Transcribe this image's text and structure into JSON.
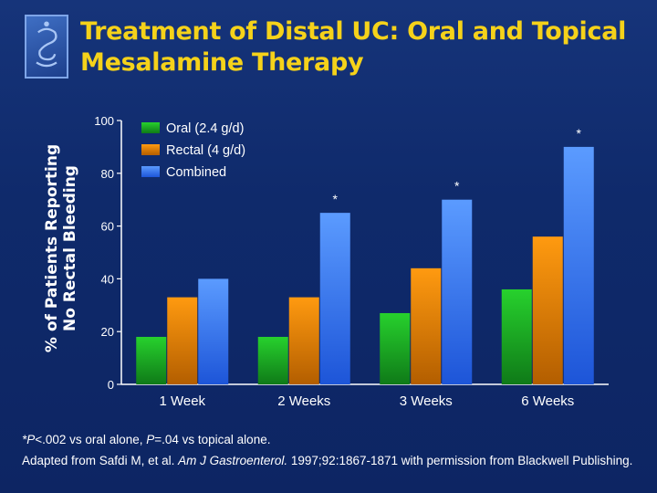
{
  "slide": {
    "title_line1": "Treatment of Distal UC: Oral and Topical",
    "title_line2": "Mesalamine Therapy"
  },
  "footnote": {
    "line1_a": "*P",
    "line1_b": "<.002 vs oral alone, ",
    "line1_c": "P",
    "line1_d": "=.04 vs topical alone.",
    "line2_a": "Adapted from Safdi M, et al. ",
    "line2_b": "Am J Gastroenterol.",
    "line2_c": " 1997;92:1867-1871 with permission from Blackwell Publishing."
  },
  "chart_data": {
    "type": "bar",
    "ylabel_line1": "% of Patients Reporting",
    "ylabel_line2": "No Rectal Bleeding",
    "ylim": [
      0,
      100
    ],
    "yticks": [
      0,
      20,
      40,
      60,
      80,
      100
    ],
    "categories": [
      "1 Week",
      "2 Weeks",
      "3 Weeks",
      "6 Weeks"
    ],
    "series": [
      {
        "name": "Oral (2.4 g/d)",
        "values": [
          18,
          18,
          27,
          36
        ],
        "color": "#27d12d",
        "color_dark": "#0f7a18"
      },
      {
        "name": "Rectal (4 g/d)",
        "values": [
          33,
          33,
          44,
          56
        ],
        "color": "#ff9a10",
        "color_dark": "#b35e00"
      },
      {
        "name": "Combined",
        "values": [
          40,
          65,
          70,
          90
        ],
        "color": "#5b9bff",
        "color_dark": "#1d55d8"
      }
    ],
    "significance_marker": "*",
    "significant": [
      {
        "category": 1,
        "series": 2
      },
      {
        "category": 2,
        "series": 2
      },
      {
        "category": 3,
        "series": 2
      }
    ],
    "legend_position": "top-left",
    "grid": false
  }
}
